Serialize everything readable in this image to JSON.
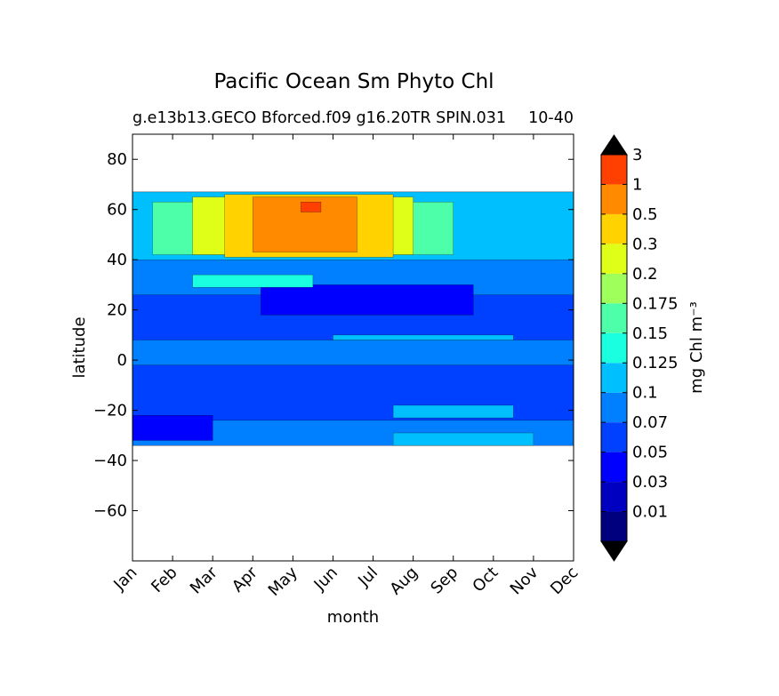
{
  "chart_data": {
    "type": "heatmap",
    "title": "Pacific Ocean Sm Phyto Chl",
    "subtitle_left": "g.e13b13.GECO Bforced.f09 g16.20TR SPIN.031",
    "subtitle_right": "10-40",
    "xlabel": "month",
    "ylabel": "latitude",
    "x_categories": [
      "Jan",
      "Feb",
      "Mar",
      "Apr",
      "May",
      "Jun",
      "Jul",
      "Aug",
      "Sep",
      "Oct",
      "Nov",
      "Dec"
    ],
    "xlim": [
      0,
      11
    ],
    "ylim": [
      -80,
      90
    ],
    "y_ticks": [
      80,
      60,
      40,
      20,
      0,
      -20,
      -40,
      -60
    ],
    "y_tick_labels": [
      "80",
      "60",
      "40",
      "20",
      "0",
      "−20",
      "−40",
      "−60"
    ],
    "data_lat_range": [
      -34,
      67
    ],
    "grid": false,
    "colorbar": {
      "label": "mg Chl m⁻³",
      "tick_labels": [
        "0.01",
        "0.03",
        "0.05",
        "0.07",
        "0.1",
        "0.125",
        "0.15",
        "0.175",
        "0.2",
        "0.3",
        "0.5",
        "1",
        "3"
      ],
      "colors": [
        "#00007f",
        "#0000c0",
        "#0000ff",
        "#0040ff",
        "#0080ff",
        "#00bfff",
        "#19ffdf",
        "#4dffa9",
        "#9fff5b",
        "#dfff18",
        "#ffd200",
        "#ff8a00",
        "#ff4000",
        "#df0000",
        "#7f0000"
      ],
      "extend": "both"
    },
    "regions": [
      {
        "level": 0.05,
        "month_range": [
          0,
          11
        ],
        "lat_range": [
          -34,
          67
        ]
      },
      {
        "level": 0.07,
        "month_range": [
          0,
          11
        ],
        "lat_range": [
          -2,
          8
        ]
      },
      {
        "level": 0.07,
        "month_range": [
          0,
          11
        ],
        "lat_range": [
          -34,
          -24
        ]
      },
      {
        "level": 0.07,
        "month_range": [
          0,
          11
        ],
        "lat_range": [
          26,
          42
        ]
      },
      {
        "level": 0.03,
        "month_range": [
          3.2,
          8.5
        ],
        "lat_range": [
          18,
          30
        ]
      },
      {
        "level": 0.03,
        "month_range": [
          0,
          2
        ],
        "lat_range": [
          -32,
          -22
        ]
      },
      {
        "level": 0.1,
        "month_range": [
          6.5,
          10
        ],
        "lat_range": [
          -34,
          -29
        ]
      },
      {
        "level": 0.1,
        "month_range": [
          6.5,
          9.5
        ],
        "lat_range": [
          -23,
          -18
        ]
      },
      {
        "level": 0.1,
        "month_range": [
          5,
          9.5
        ],
        "lat_range": [
          8,
          10
        ]
      },
      {
        "level": 0.1,
        "month_range": [
          0,
          11
        ],
        "lat_range": [
          40,
          67
        ]
      },
      {
        "level": 0.125,
        "month_range": [
          1.5,
          4.5
        ],
        "lat_range": [
          29,
          34
        ]
      },
      {
        "level": 0.15,
        "month_range": [
          0.5,
          8
        ],
        "lat_range": [
          42,
          63
        ]
      },
      {
        "level": 0.2,
        "month_range": [
          1.5,
          7
        ],
        "lat_range": [
          42,
          65
        ]
      },
      {
        "level": 0.3,
        "month_range": [
          2.3,
          6.5
        ],
        "lat_range": [
          41,
          66
        ]
      },
      {
        "level": 0.5,
        "month_range": [
          3,
          5.6
        ],
        "lat_range": [
          43,
          65
        ]
      },
      {
        "level": 1,
        "month_range": [
          4.2,
          4.7
        ],
        "lat_range": [
          59,
          63
        ]
      }
    ]
  }
}
